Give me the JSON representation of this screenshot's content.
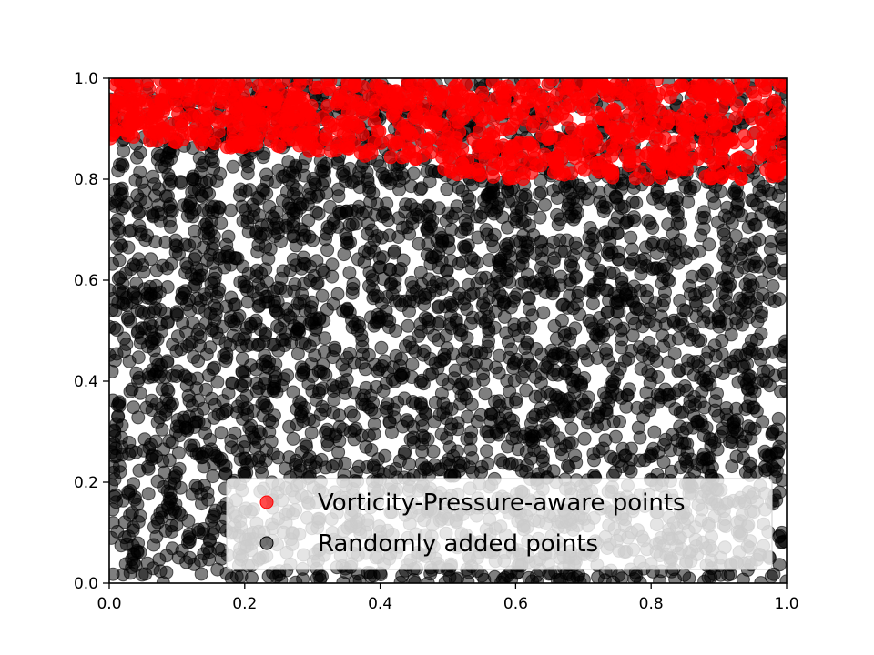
{
  "chart_data": {
    "type": "scatter",
    "title": "",
    "xlabel": "",
    "ylabel": "",
    "xlim": [
      0.0,
      1.0
    ],
    "ylim": [
      0.0,
      1.0
    ],
    "xticks": [
      "0.0",
      "0.2",
      "0.4",
      "0.6",
      "0.8",
      "1.0"
    ],
    "yticks": [
      "0.0",
      "0.2",
      "0.4",
      "0.6",
      "0.8",
      "1.0"
    ],
    "grid": false,
    "legend_position": "lower-right",
    "series": [
      {
        "name": "Randomly added points",
        "color": "#000000",
        "alpha": 0.5,
        "distribution": "uniform",
        "count": 4000,
        "x_range": [
          0.0,
          1.0
        ],
        "y_range": [
          0.0,
          1.0
        ]
      },
      {
        "name": "Vorticity-Pressure-aware points",
        "color": "#ff0000",
        "alpha": 0.7,
        "distribution": "uniform",
        "count": 1100,
        "x_range": [
          0.0,
          1.0
        ],
        "y_range": [
          0.8,
          1.0
        ],
        "band_lower_edge": [
          [
            0.0,
            0.88
          ],
          [
            0.3,
            0.85
          ],
          [
            0.45,
            0.84
          ],
          [
            0.5,
            0.81
          ],
          [
            0.6,
            0.8
          ],
          [
            1.0,
            0.8
          ]
        ]
      }
    ],
    "legend": [
      {
        "label": "Vorticity-Pressure-aware points",
        "color": "#ff0000"
      },
      {
        "label": "Randomly added points",
        "color": "#000000"
      }
    ]
  }
}
